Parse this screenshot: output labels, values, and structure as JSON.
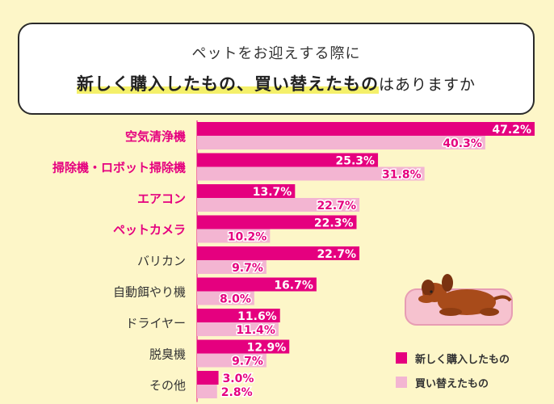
{
  "title": {
    "line1": "ペットをお迎えする際に",
    "line2_highlight": "新しく購入したもの、買い替えたもの",
    "line2_rest": "はありますか"
  },
  "colors": {
    "new": "#e5007f",
    "replace": "#f3b5d2",
    "highlight_label": "#e5007f",
    "normal_label": "#333333",
    "new_value_text": "#ffffff",
    "replace_value_text": "#e5007f"
  },
  "legend": {
    "new_label": "新しく購入したもの",
    "replace_label": "買い替えたもの"
  },
  "chart_data": {
    "type": "bar",
    "orientation": "horizontal",
    "unit": "%",
    "xlim": [
      0,
      47.2
    ],
    "categories": [
      "空気清浄機",
      "掃除機・ロボット掃除機",
      "エアコン",
      "ペットカメラ",
      "バリカン",
      "自動餌やり機",
      "ドライヤー",
      "脱臭機",
      "その他"
    ],
    "highlighted_categories": [
      "空気清浄機",
      "掃除機・ロボット掃除機",
      "エアコン",
      "ペットカメラ"
    ],
    "series": [
      {
        "name": "新しく購入したもの",
        "values": [
          47.2,
          25.3,
          13.7,
          22.3,
          22.7,
          16.7,
          11.6,
          12.9,
          3.0
        ]
      },
      {
        "name": "買い替えたもの",
        "values": [
          40.3,
          31.8,
          22.7,
          10.2,
          9.7,
          8.0,
          11.4,
          9.7,
          2.8
        ]
      }
    ]
  }
}
